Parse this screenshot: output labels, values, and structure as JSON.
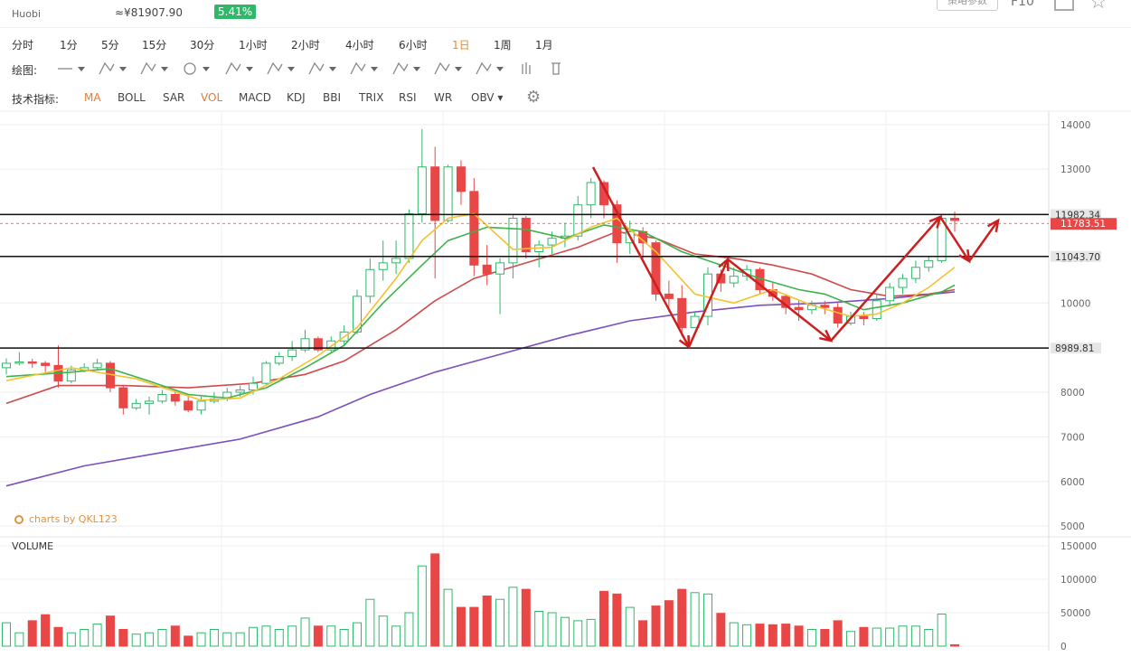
{
  "header": {
    "exchange": "Huobi",
    "price": "≈¥81907.90",
    "change": "5.41%",
    "params_button": "策略参数",
    "f10_label": "F10"
  },
  "timeframes": [
    "分时",
    "1分",
    "5分",
    "15分",
    "30分",
    "1小时",
    "2小时",
    "4小时",
    "6小时",
    "1日",
    "1周",
    "1月"
  ],
  "active_timeframe": "1日",
  "drawing_toolbar": {
    "label": "绘图:",
    "tools": [
      "line-tool-icon",
      "pen-tool-icon",
      "channel-tool-icon",
      "circle-tool-icon",
      "zigzag-tool-icon",
      "pattern-tool-icon",
      "fib-tool-icon",
      "gann-tool-icon",
      "arrow-tool-icon",
      "measure-tool-icon",
      "comment-tool-icon",
      "bars-tool-icon",
      "trash-icon"
    ]
  },
  "indicators": {
    "label": "技术指标:",
    "items": [
      "MA",
      "BOLL",
      "SAR",
      "VOL",
      "MACD",
      "KDJ",
      "BBI",
      "TRIX",
      "RSI",
      "WR",
      "OBV"
    ],
    "active": [
      "MA",
      "VOL"
    ],
    "settings_icon": "gear-icon"
  },
  "watermark": "charts by QKL123",
  "colors": {
    "up": "#2fb86a",
    "down": "#e94646",
    "ma5": "#f2c230",
    "ma10": "#3cb44b",
    "ma20": "#cf4b4b",
    "ma60": "#7b4fbf",
    "annotation": "#cc1f1f"
  },
  "chart_data": {
    "type": "candlestick",
    "y_ticks": [
      14000,
      13000,
      12000,
      11000,
      10000,
      9000,
      8000,
      7000,
      6000,
      5000
    ],
    "ylim": [
      4800,
      14300
    ],
    "levels": [
      {
        "value": 11982.34,
        "label": "11982.34",
        "color": "#111111"
      },
      {
        "value": 11043.7,
        "label": "11043.70",
        "color": "#111111"
      },
      {
        "value": 8989.81,
        "label": "8989.81",
        "color": "#111111"
      }
    ],
    "last_price": {
      "value": 11783.51,
      "label": "11783.51"
    },
    "candles": [
      [
        8550,
        8650,
        8400,
        8760
      ],
      [
        8650,
        8680,
        8600,
        8900
      ],
      [
        8680,
        8650,
        8550,
        8750
      ],
      [
        8650,
        8600,
        8450,
        8700
      ],
      [
        8600,
        8250,
        8100,
        9050
      ],
      [
        8250,
        8500,
        8200,
        8600
      ],
      [
        8500,
        8550,
        8450,
        8650
      ],
      [
        8550,
        8650,
        8500,
        8750
      ],
      [
        8650,
        8100,
        8000,
        8700
      ],
      [
        8100,
        7650,
        7500,
        8150
      ],
      [
        7650,
        7750,
        7600,
        7850
      ],
      [
        7750,
        7800,
        7500,
        7900
      ],
      [
        7800,
        7950,
        7750,
        8050
      ],
      [
        7950,
        7800,
        7700,
        8050
      ],
      [
        7800,
        7600,
        7550,
        7900
      ],
      [
        7600,
        7800,
        7500,
        7900
      ],
      [
        7800,
        7850,
        7750,
        8000
      ],
      [
        7850,
        8000,
        7800,
        8100
      ],
      [
        8000,
        8050,
        7900,
        8150
      ],
      [
        8050,
        8200,
        7950,
        8350
      ],
      [
        8200,
        8650,
        8150,
        8700
      ],
      [
        8650,
        8800,
        8600,
        8900
      ],
      [
        8800,
        8950,
        8700,
        9150
      ],
      [
        8950,
        9200,
        8900,
        9400
      ],
      [
        9200,
        8950,
        8900,
        9250
      ],
      [
        8950,
        9150,
        8900,
        9250
      ],
      [
        9150,
        9350,
        9050,
        9500
      ],
      [
        9350,
        10150,
        9300,
        10300
      ],
      [
        10150,
        10750,
        10000,
        11000
      ],
      [
        10750,
        10900,
        10500,
        11400
      ],
      [
        10900,
        11000,
        10650,
        11400
      ],
      [
        11000,
        12000,
        10900,
        12100
      ],
      [
        12000,
        13050,
        11800,
        13900
      ],
      [
        13050,
        11850,
        10550,
        13500
      ],
      [
        11850,
        13050,
        11800,
        13100
      ],
      [
        13050,
        12500,
        12200,
        13200
      ],
      [
        12500,
        10850,
        10600,
        12800
      ],
      [
        10850,
        10650,
        10400,
        11300
      ],
      [
        10650,
        10900,
        9750,
        11000
      ],
      [
        10900,
        11900,
        10550,
        12000
      ],
      [
        11900,
        11150,
        11000,
        11950
      ],
      [
        11150,
        11300,
        10800,
        11400
      ],
      [
        11300,
        11450,
        11100,
        11600
      ],
      [
        11450,
        11500,
        11250,
        11800
      ],
      [
        11500,
        12200,
        11400,
        12400
      ],
      [
        12200,
        12700,
        11900,
        12800
      ],
      [
        12700,
        12200,
        11900,
        12750
      ],
      [
        12200,
        11350,
        10900,
        12300
      ],
      [
        11350,
        11600,
        11100,
        11850
      ],
      [
        11600,
        11350,
        11000,
        11700
      ],
      [
        11350,
        10200,
        10050,
        11400
      ],
      [
        10200,
        10100,
        9800,
        10500
      ],
      [
        10100,
        9450,
        9250,
        10400
      ],
      [
        9450,
        9700,
        9450,
        9800
      ],
      [
        9700,
        10650,
        9500,
        10800
      ],
      [
        10650,
        10450,
        10250,
        10750
      ],
      [
        10450,
        10600,
        10350,
        10800
      ],
      [
        10600,
        10750,
        10500,
        10850
      ],
      [
        10750,
        10300,
        10200,
        10800
      ],
      [
        10300,
        10150,
        10050,
        10450
      ],
      [
        10150,
        9900,
        9750,
        10200
      ],
      [
        9900,
        9850,
        9600,
        10050
      ],
      [
        9850,
        9950,
        9750,
        10050
      ],
      [
        9950,
        9900,
        9750,
        10050
      ],
      [
        9900,
        9550,
        9450,
        10000
      ],
      [
        9550,
        9700,
        9500,
        9800
      ],
      [
        9700,
        9650,
        9500,
        9800
      ],
      [
        9650,
        10050,
        9600,
        10200
      ],
      [
        10050,
        10350,
        9950,
        10450
      ],
      [
        10350,
        10550,
        10200,
        10650
      ],
      [
        10550,
        10800,
        10450,
        10950
      ],
      [
        10800,
        10950,
        10700,
        11050
      ],
      [
        10950,
        11900,
        10900,
        12000
      ],
      [
        11900,
        11850,
        11600,
        12050
      ]
    ],
    "ma5": [
      [
        0,
        8260
      ],
      [
        5,
        8550
      ],
      [
        10,
        8300
      ],
      [
        15,
        7820
      ],
      [
        18,
        7870
      ],
      [
        21,
        8300
      ],
      [
        24,
        8820
      ],
      [
        27,
        9450
      ],
      [
        30,
        10550
      ],
      [
        32,
        11400
      ],
      [
        34,
        11900
      ],
      [
        36,
        12000
      ],
      [
        39,
        11200
      ],
      [
        42,
        11250
      ],
      [
        45,
        11700
      ],
      [
        47,
        11900
      ],
      [
        50,
        11150
      ],
      [
        53,
        10200
      ],
      [
        56,
        10000
      ],
      [
        59,
        10300
      ],
      [
        62,
        9950
      ],
      [
        65,
        9700
      ],
      [
        67,
        9750
      ],
      [
        69,
        10000
      ],
      [
        71,
        10350
      ],
      [
        73,
        10800
      ]
    ],
    "ma10": [
      [
        0,
        8350
      ],
      [
        5,
        8450
      ],
      [
        8,
        8530
      ],
      [
        11,
        8250
      ],
      [
        14,
        7950
      ],
      [
        17,
        7870
      ],
      [
        20,
        8100
      ],
      [
        23,
        8550
      ],
      [
        26,
        9050
      ],
      [
        29,
        10000
      ],
      [
        32,
        10850
      ],
      [
        34,
        11400
      ],
      [
        37,
        11700
      ],
      [
        40,
        11650
      ],
      [
        43,
        11450
      ],
      [
        46,
        11750
      ],
      [
        49,
        11600
      ],
      [
        52,
        11150
      ],
      [
        55,
        10850
      ],
      [
        58,
        10550
      ],
      [
        61,
        10300
      ],
      [
        63,
        10200
      ],
      [
        66,
        9850
      ],
      [
        69,
        10000
      ],
      [
        72,
        10250
      ],
      [
        73,
        10400
      ]
    ],
    "ma20": [
      [
        0,
        7750
      ],
      [
        4,
        8150
      ],
      [
        9,
        8150
      ],
      [
        14,
        8100
      ],
      [
        19,
        8200
      ],
      [
        23,
        8400
      ],
      [
        26,
        8700
      ],
      [
        30,
        9400
      ],
      [
        33,
        10050
      ],
      [
        36,
        10550
      ],
      [
        40,
        10900
      ],
      [
        44,
        11250
      ],
      [
        47,
        11600
      ],
      [
        50,
        11450
      ],
      [
        53,
        11100
      ],
      [
        56,
        11000
      ],
      [
        59,
        10850
      ],
      [
        62,
        10650
      ],
      [
        65,
        10300
      ],
      [
        68,
        10150
      ],
      [
        71,
        10200
      ],
      [
        73,
        10300
      ]
    ],
    "ma60": [
      [
        0,
        5900
      ],
      [
        6,
        6350
      ],
      [
        12,
        6650
      ],
      [
        18,
        6950
      ],
      [
        24,
        7450
      ],
      [
        28,
        7950
      ],
      [
        33,
        8450
      ],
      [
        38,
        8850
      ],
      [
        43,
        9250
      ],
      [
        48,
        9600
      ],
      [
        53,
        9800
      ],
      [
        58,
        9950
      ],
      [
        63,
        10000
      ],
      [
        68,
        10100
      ],
      [
        73,
        10250
      ]
    ],
    "annotation_path": [
      [
        656,
        185
      ],
      [
        762,
        384
      ],
      [
        805,
        287
      ],
      [
        919,
        377
      ],
      [
        1040,
        240
      ],
      [
        1072,
        289
      ],
      [
        1104,
        244
      ]
    ],
    "volume": {
      "label": "VOLUME",
      "y_ticks": [
        150000,
        100000,
        50000,
        0
      ],
      "ylim": [
        0,
        150000
      ],
      "values": [
        35000,
        20000,
        38000,
        47000,
        28000,
        20000,
        25000,
        33000,
        45000,
        25000,
        18000,
        20000,
        25000,
        30000,
        15000,
        20000,
        25000,
        20000,
        20000,
        28000,
        30000,
        25000,
        30000,
        42000,
        30000,
        30000,
        25000,
        35000,
        70000,
        45000,
        30000,
        50000,
        120000,
        138000,
        85000,
        58000,
        58000,
        75000,
        70000,
        88000,
        85000,
        52000,
        50000,
        43000,
        38000,
        40000,
        82000,
        78000,
        58000,
        38000,
        60000,
        68000,
        85000,
        80000,
        78000,
        49000,
        35000,
        32000,
        33000,
        32000,
        33000,
        30000,
        25000,
        25000,
        38000,
        22000,
        28000,
        27000,
        27000,
        30000,
        30000,
        25000,
        48000,
        2000
      ]
    }
  }
}
